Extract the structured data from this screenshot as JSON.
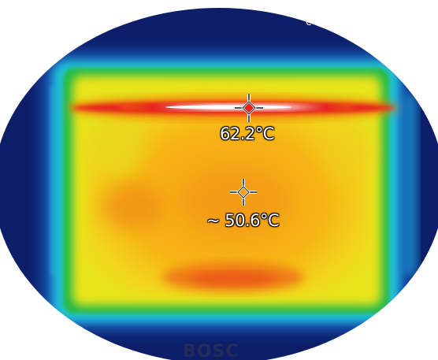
{
  "thermal_image": {
    "measurement_max": {
      "value_text": "62.2°C",
      "icon": "crosshair-marker-icon"
    },
    "measurement_center": {
      "value_text": "~ 50.6°C",
      "icon": "crosshair-marker-icon"
    },
    "corner_mark": "c",
    "watermark": "BOSC",
    "palette": {
      "cold_background": "#0a1a5e",
      "blue": "#1f6fd6",
      "cyan": "#20c6d8",
      "green": "#22b84a",
      "yellow": "#f2e21a",
      "orange": "#f5a214",
      "hot_orange": "#f07a10",
      "red": "#e6201c",
      "white_hot": "#ffffff"
    }
  }
}
